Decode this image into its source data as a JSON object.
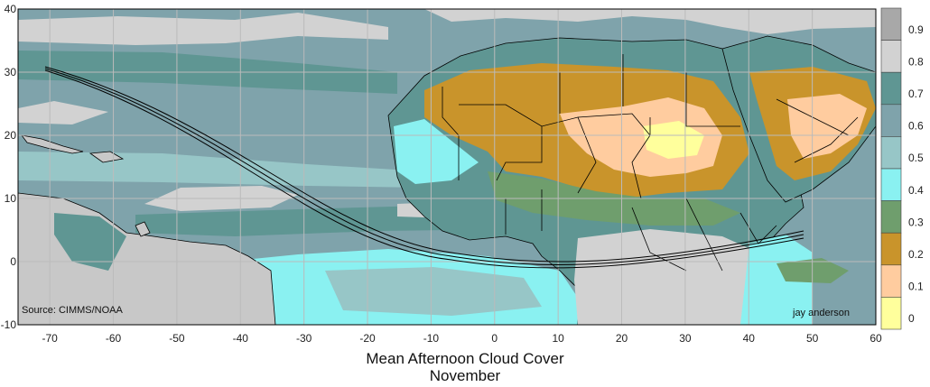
{
  "caption": {
    "title": "Mean Afternoon Cloud Cover",
    "month": "November"
  },
  "source_label": "Source: CIMMS/NOAA",
  "author_label": "jay anderson",
  "axes": {
    "x_ticks": [
      "-70",
      "-60",
      "-50",
      "-40",
      "-30",
      "-20",
      "-10",
      "0",
      "10",
      "20",
      "30",
      "40",
      "50",
      "60"
    ],
    "y_ticks": [
      "40",
      "30",
      "20",
      "10",
      "0",
      "-10"
    ],
    "lon_range": [
      -75,
      60
    ],
    "lat_range": [
      -10,
      40
    ]
  },
  "legend": {
    "labels": [
      "0.9",
      "0.8",
      "0.7",
      "0.6",
      "0.5",
      "0.4",
      "0.3",
      "0.2",
      "0.1",
      "0"
    ],
    "colors": [
      "#a8a8a8",
      "#d2d2d2",
      "#5f9693",
      "#7fa3ab",
      "#97c6c7",
      "#8af1f1",
      "#6f9e6d",
      "#c9942b",
      "#ffcc9f",
      "#ffff9c"
    ]
  },
  "colors": {
    "frame": "#000000",
    "grid": "#bbbbbb",
    "eclipse_path": "#000000",
    "border": "#000000"
  }
}
